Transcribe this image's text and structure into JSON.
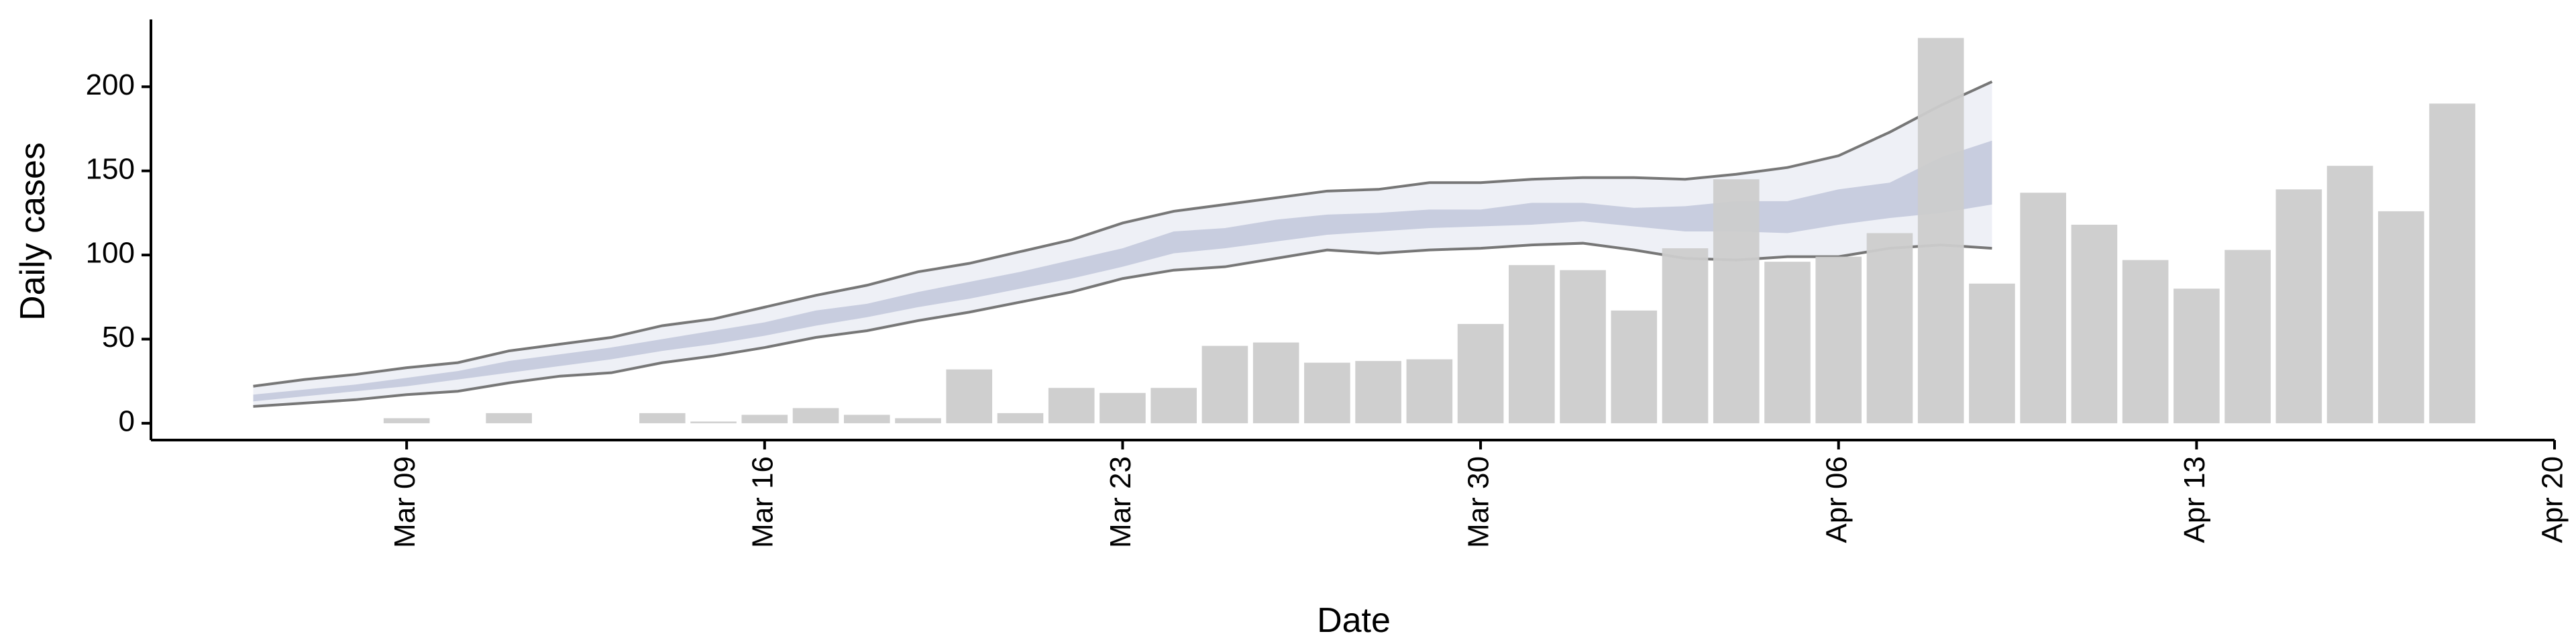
{
  "chart_data": {
    "type": "bar",
    "x_label": "Date",
    "y_label": "Daily cases",
    "xlim": [
      "Mar 04",
      "Apr 20"
    ],
    "xticks": [
      "Mar 09",
      "Mar 16",
      "Mar 23",
      "Mar 30",
      "Apr 06",
      "Apr 13",
      "Apr 20"
    ],
    "ylim": [
      -10,
      240
    ],
    "yticks": [
      0,
      50,
      100,
      150,
      200
    ],
    "categories": [
      "Mar 09",
      "Mar 10",
      "Mar 11",
      "Mar 12",
      "Mar 13",
      "Mar 14",
      "Mar 15",
      "Mar 16",
      "Mar 17",
      "Mar 18",
      "Mar 19",
      "Mar 20",
      "Mar 21",
      "Mar 22",
      "Mar 23",
      "Mar 24",
      "Mar 25",
      "Mar 26",
      "Mar 27",
      "Mar 28",
      "Mar 29",
      "Mar 30",
      "Mar 31",
      "Apr 01",
      "Apr 02",
      "Apr 03",
      "Apr 04",
      "Apr 05",
      "Apr 06",
      "Apr 07",
      "Apr 08",
      "Apr 09",
      "Apr 10",
      "Apr 11",
      "Apr 12",
      "Apr 13",
      "Apr 14",
      "Apr 15",
      "Apr 16",
      "Apr 17",
      "Apr 18"
    ],
    "values": [
      3,
      0,
      6,
      0,
      0,
      6,
      1,
      5,
      9,
      5,
      3,
      32,
      6,
      21,
      18,
      21,
      46,
      48,
      36,
      37,
      38,
      59,
      94,
      91,
      67,
      104,
      145,
      96,
      99,
      113,
      229,
      83,
      137,
      118,
      97,
      80,
      103,
      139,
      153,
      126,
      190
    ],
    "color": "#cccccc",
    "band": {
      "x": [
        "Mar 06",
        "Mar 07",
        "Mar 08",
        "Mar 09",
        "Mar 10",
        "Mar 11",
        "Mar 12",
        "Mar 13",
        "Mar 14",
        "Mar 15",
        "Mar 16",
        "Mar 17",
        "Mar 18",
        "Mar 19",
        "Mar 20",
        "Mar 21",
        "Mar 22",
        "Mar 23",
        "Mar 24",
        "Mar 25",
        "Mar 26",
        "Mar 27",
        "Mar 28",
        "Mar 29",
        "Mar 30",
        "Mar 31",
        "Apr 01",
        "Apr 02",
        "Apr 03",
        "Apr 04",
        "Apr 05",
        "Apr 06",
        "Apr 07",
        "Apr 08",
        "Apr 09"
      ],
      "outer_lower": [
        10,
        12,
        14,
        17,
        19,
        24,
        28,
        30,
        36,
        40,
        45,
        51,
        55,
        61,
        66,
        72,
        78,
        86,
        91,
        93,
        98,
        103,
        101,
        103,
        104,
        106,
        107,
        103,
        98,
        97,
        99,
        99,
        104,
        106,
        104
      ],
      "outer_upper": [
        22,
        26,
        29,
        33,
        36,
        43,
        47,
        51,
        58,
        62,
        69,
        76,
        82,
        90,
        95,
        102,
        109,
        119,
        126,
        130,
        134,
        138,
        139,
        143,
        143,
        145,
        146,
        146,
        145,
        148,
        152,
        159,
        173,
        189,
        203
      ],
      "inner_lower": [
        13,
        16,
        19,
        22,
        26,
        30,
        34,
        38,
        43,
        47,
        52,
        58,
        63,
        69,
        74,
        80,
        86,
        93,
        101,
        104,
        108,
        112,
        114,
        116,
        117,
        118,
        120,
        117,
        114,
        114,
        113,
        118,
        122,
        125,
        130
      ],
      "inner_upper": [
        17,
        20,
        23,
        27,
        31,
        37,
        41,
        45,
        50,
        55,
        60,
        67,
        71,
        78,
        84,
        90,
        97,
        104,
        114,
        116,
        121,
        124,
        125,
        127,
        127,
        131,
        131,
        128,
        129,
        132,
        132,
        139,
        143,
        158,
        168
      ],
      "outer_color": "#eef0f6",
      "inner_color": "#c8cddf",
      "line_color": "#777777"
    }
  }
}
